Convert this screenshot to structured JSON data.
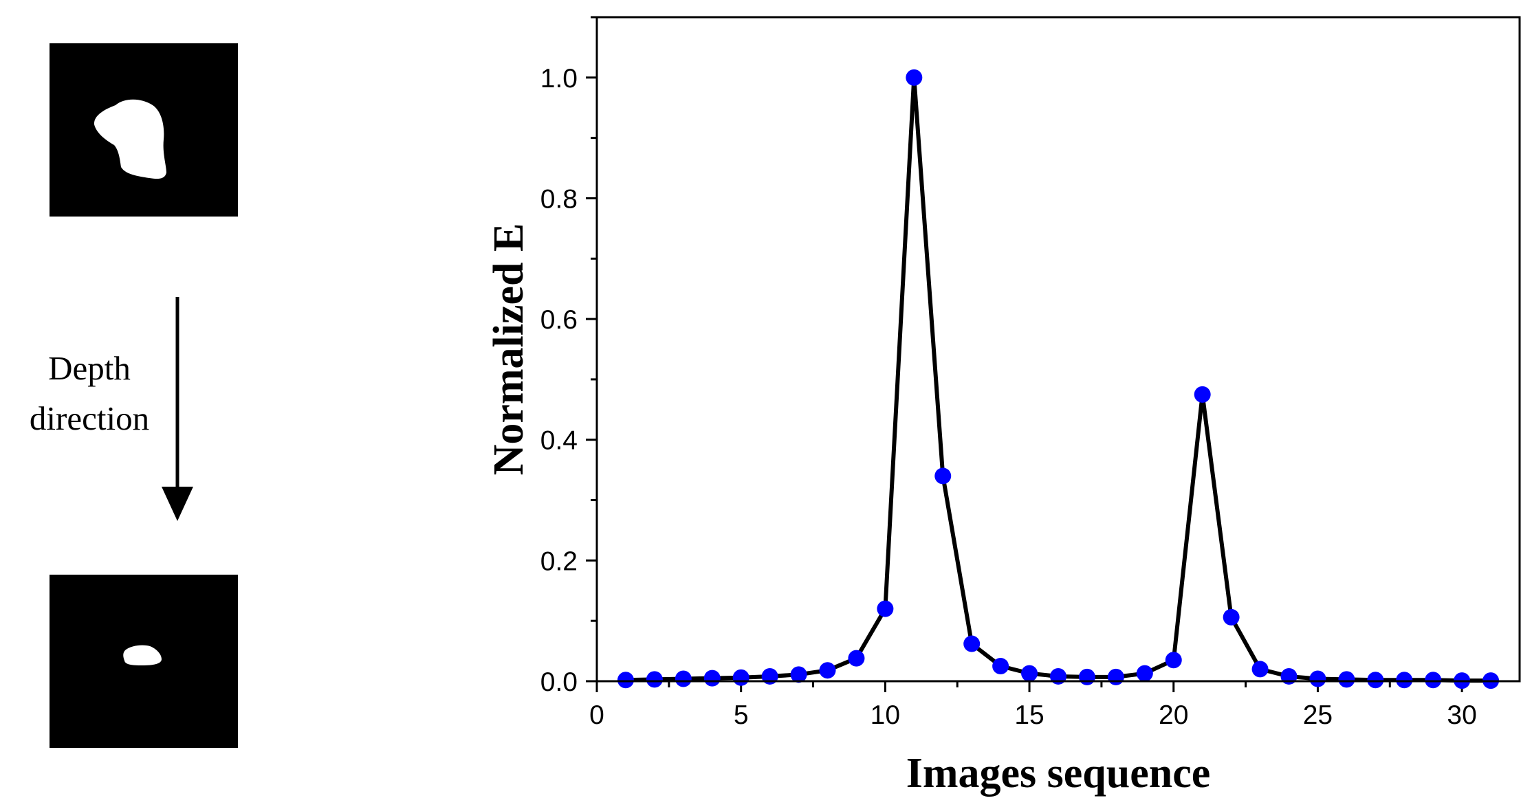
{
  "left_panel": {
    "label_line1": "Depth",
    "label_line2": "direction"
  },
  "chart_data": {
    "type": "line",
    "title": "",
    "xlabel": "Images sequence",
    "ylabel": "Normalized E",
    "xlim": [
      0,
      32
    ],
    "ylim": [
      0,
      1.1
    ],
    "x_ticks": [
      0,
      5,
      10,
      15,
      20,
      25,
      30
    ],
    "y_ticks": [
      0.0,
      0.2,
      0.4,
      0.6,
      0.8,
      1.0
    ],
    "x_tick_labels": [
      "0",
      "5",
      "10",
      "15",
      "20",
      "25",
      "30"
    ],
    "y_tick_labels": [
      "0.0",
      "0.2",
      "0.4",
      "0.6",
      "0.8",
      "1.0"
    ],
    "grid": false,
    "line_color": "#000000",
    "marker_color": "#0000ff",
    "series": [
      {
        "x": [
          1,
          2,
          3,
          4,
          5,
          6,
          7,
          8,
          9,
          10,
          11,
          12,
          13,
          14,
          15,
          16,
          17,
          18,
          19,
          20,
          21,
          22,
          23,
          24,
          25,
          26,
          27,
          28,
          29,
          30,
          31
        ],
        "values": [
          0.002,
          0.003,
          0.004,
          0.005,
          0.006,
          0.008,
          0.011,
          0.018,
          0.038,
          0.12,
          1.0,
          0.34,
          0.062,
          0.025,
          0.013,
          0.008,
          0.007,
          0.007,
          0.013,
          0.035,
          0.475,
          0.106,
          0.02,
          0.008,
          0.004,
          0.003,
          0.002,
          0.002,
          0.002,
          0.001,
          0.001
        ]
      }
    ]
  }
}
